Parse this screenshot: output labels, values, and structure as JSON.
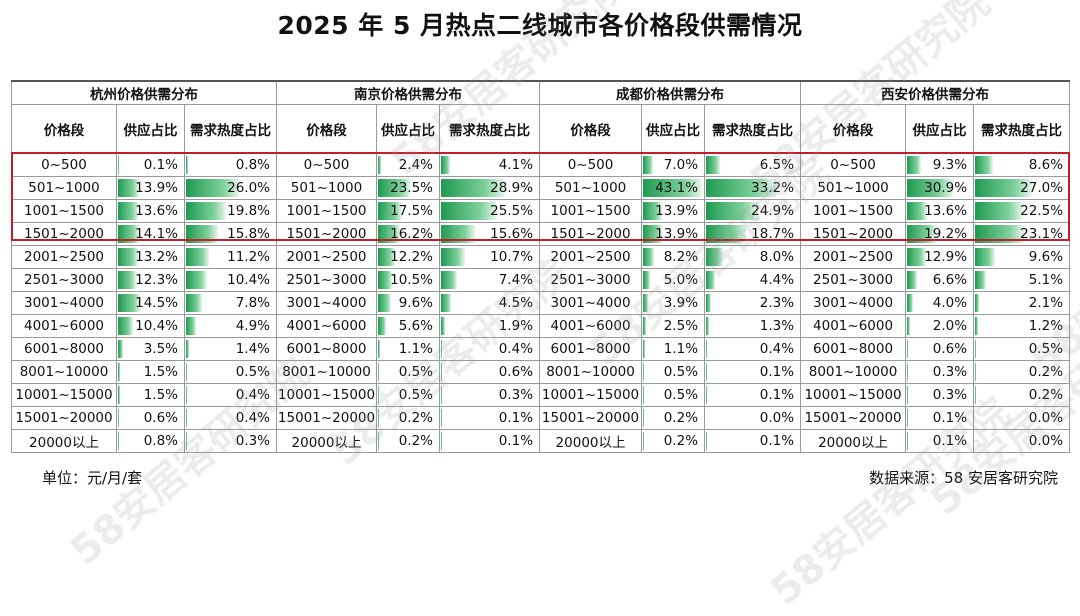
{
  "title": "2025 年 5 月热点二线城市各价格段供需情况",
  "unit_note": "单位：元/月/套",
  "source_note": "数据来源：58 安居客研究院",
  "watermark": "58安居客研究院",
  "headers": {
    "range": "价格段",
    "supply": "供应占比",
    "demand": "需求热度占比"
  },
  "colors": {
    "bar": "#1e9a50",
    "highlight": "#c21e2e"
  },
  "chart_data": {
    "type": "table",
    "title": "2025 年 5 月热点二线城市各价格段供需情况",
    "price_ranges": [
      "0~500",
      "501~1000",
      "1001~1500",
      "1501~2000",
      "2001~2500",
      "2501~3000",
      "3001~4000",
      "4001~6000",
      "6001~8000",
      "8001~10000",
      "10001~15000",
      "15001~20000",
      "20000以上"
    ],
    "highlighted_rows": [
      "0~500",
      "501~1000",
      "1001~1500",
      "1501~2000"
    ],
    "cities": [
      {
        "title": "杭州价格供需分布",
        "supply": [
          "0.1%",
          "13.9%",
          "13.6%",
          "14.1%",
          "13.2%",
          "12.3%",
          "14.5%",
          "10.4%",
          "3.5%",
          "1.5%",
          "1.5%",
          "0.6%",
          "0.8%"
        ],
        "demand": [
          "0.8%",
          "26.0%",
          "19.8%",
          "15.8%",
          "11.2%",
          "10.4%",
          "7.8%",
          "4.9%",
          "1.4%",
          "0.5%",
          "0.4%",
          "0.4%",
          "0.3%"
        ]
      },
      {
        "title": "南京价格供需分布",
        "supply": [
          "2.4%",
          "23.5%",
          "17.5%",
          "16.2%",
          "12.2%",
          "10.5%",
          "9.6%",
          "5.6%",
          "1.1%",
          "0.5%",
          "0.5%",
          "0.2%",
          "0.2%"
        ],
        "demand": [
          "4.1%",
          "28.9%",
          "25.5%",
          "15.6%",
          "10.7%",
          "7.4%",
          "4.5%",
          "1.9%",
          "0.4%",
          "0.6%",
          "0.3%",
          "0.1%",
          "0.1%"
        ]
      },
      {
        "title": "成都价格供需分布",
        "supply": [
          "7.0%",
          "43.1%",
          "13.9%",
          "13.9%",
          "8.2%",
          "5.0%",
          "3.9%",
          "2.5%",
          "1.1%",
          "0.5%",
          "0.5%",
          "0.2%",
          "0.2%"
        ],
        "demand": [
          "6.5%",
          "33.2%",
          "24.9%",
          "18.7%",
          "8.0%",
          "4.4%",
          "2.3%",
          "1.3%",
          "0.4%",
          "0.1%",
          "0.1%",
          "0.0%",
          "0.1%"
        ]
      },
      {
        "title": "西安价格供需分布",
        "supply": [
          "9.3%",
          "30.9%",
          "13.6%",
          "19.2%",
          "12.9%",
          "6.6%",
          "4.0%",
          "2.0%",
          "0.6%",
          "0.3%",
          "0.3%",
          "0.1%",
          "0.1%"
        ],
        "demand": [
          "8.6%",
          "27.0%",
          "22.5%",
          "23.1%",
          "9.6%",
          "5.1%",
          "2.1%",
          "1.2%",
          "0.5%",
          "0.2%",
          "0.2%",
          "0.0%",
          "0.0%"
        ]
      }
    ]
  }
}
